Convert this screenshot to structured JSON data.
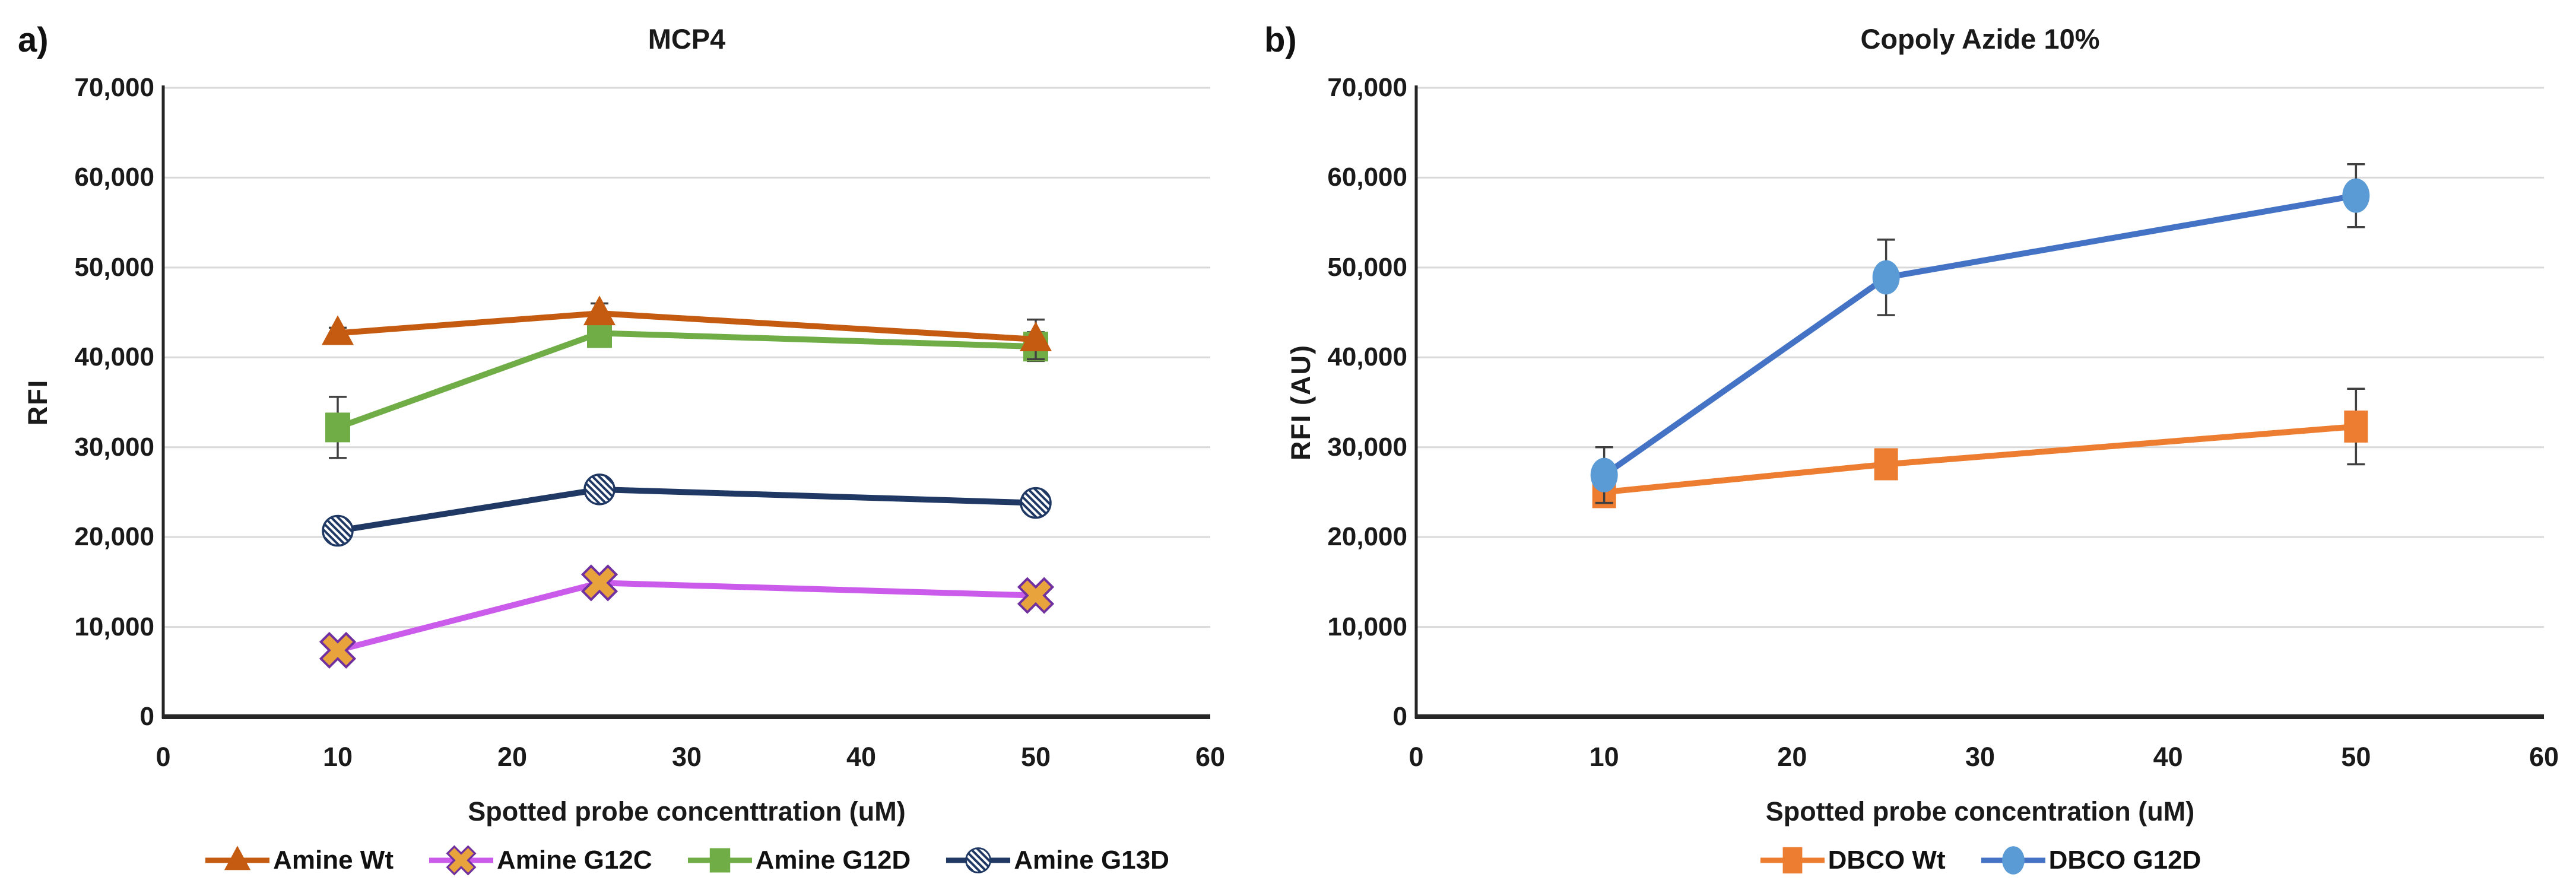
{
  "figure": {
    "background": "#FFFFFF"
  },
  "styles": {
    "grid_color": "#D9D9D9",
    "axis_color": "#262626",
    "error_bar_color": "#404040",
    "text_color": "#1a1a1a"
  },
  "chart_data": [
    {
      "type": "line",
      "panel_label": "a)",
      "title": "MCP4",
      "xlabel": "Spotted probe concenttration (uM)",
      "ylabel": "RFI",
      "xlim": [
        0,
        60
      ],
      "ylim": [
        0,
        70000
      ],
      "x_ticks": [
        0,
        10,
        20,
        30,
        40,
        50,
        60
      ],
      "x_tick_labels": [
        "0",
        "10",
        "20",
        "30",
        "40",
        "50",
        "60"
      ],
      "y_ticks": [
        0,
        10000,
        20000,
        30000,
        40000,
        50000,
        60000,
        70000
      ],
      "y_tick_labels": [
        "0",
        "10,000",
        "20,000",
        "30,000",
        "40,000",
        "50,000",
        "60,000",
        "70,000"
      ],
      "grid": "horizontal",
      "legend_position": "bottom",
      "x": [
        10,
        25,
        50
      ],
      "draw_order": [
        1,
        3,
        2,
        0
      ],
      "series": [
        {
          "name": "Amine Wt",
          "marker": "triangle",
          "line_color": "#C55A11",
          "marker_fill": "#C55A11",
          "marker_stroke": "#C55A11",
          "values": [
            42700,
            44900,
            42000
          ],
          "errors": [
            600,
            1100,
            2200
          ]
        },
        {
          "name": "Amine G12C",
          "marker": "x-cross",
          "line_color": "#CB5CEB",
          "marker_fill": "#E8A33D",
          "marker_stroke": "#7030A0",
          "values": [
            7400,
            14900,
            13500
          ],
          "errors": [
            900,
            700,
            900
          ]
        },
        {
          "name": "Amine G12D",
          "marker": "square",
          "line_color": "#70AD47",
          "marker_fill": "#70AD47",
          "marker_stroke": "#70AD47",
          "values": [
            32200,
            42700,
            41200
          ],
          "errors": [
            3400,
            900,
            1600
          ]
        },
        {
          "name": "Amine G13D",
          "marker": "hatched-circle",
          "line_color": "#1F3864",
          "marker_fill": "#FFFFFF",
          "marker_stroke": "#1F3864",
          "values": [
            20700,
            25300,
            23800
          ],
          "errors": [
            400,
            300,
            500
          ]
        }
      ]
    },
    {
      "type": "line",
      "panel_label": "b)",
      "title": "Copoly Azide 10%",
      "xlabel": "Spotted probe concentration (uM)",
      "ylabel": "RFI (AU)",
      "xlim": [
        0,
        60
      ],
      "ylim": [
        0,
        70000
      ],
      "x_ticks": [
        0,
        10,
        20,
        30,
        40,
        50,
        60
      ],
      "x_tick_labels": [
        "0",
        "10",
        "20",
        "30",
        "40",
        "50",
        "60"
      ],
      "y_ticks": [
        0,
        10000,
        20000,
        30000,
        40000,
        50000,
        60000,
        70000
      ],
      "y_tick_labels": [
        "0",
        "10,000",
        "20,000",
        "30,000",
        "40,000",
        "50,000",
        "60,000",
        "70,000"
      ],
      "grid": "horizontal",
      "legend_position": "bottom",
      "x": [
        10,
        25,
        50
      ],
      "draw_order": [
        0,
        1
      ],
      "series": [
        {
          "name": "DBCO Wt",
          "marker": "vrect",
          "line_color": "#ED7D31",
          "marker_fill": "#ED7D31",
          "marker_stroke": "#ED7D31",
          "values": [
            25000,
            28100,
            32300
          ],
          "errors": [
            1300,
            1600,
            4200
          ]
        },
        {
          "name": "DBCO G12D",
          "marker": "ellipse",
          "line_color": "#4472C4",
          "marker_fill": "#5B9BD5",
          "marker_stroke": "#5B9BD5",
          "values": [
            26900,
            48900,
            58000
          ],
          "errors": [
            3100,
            4200,
            3500
          ]
        }
      ]
    }
  ]
}
